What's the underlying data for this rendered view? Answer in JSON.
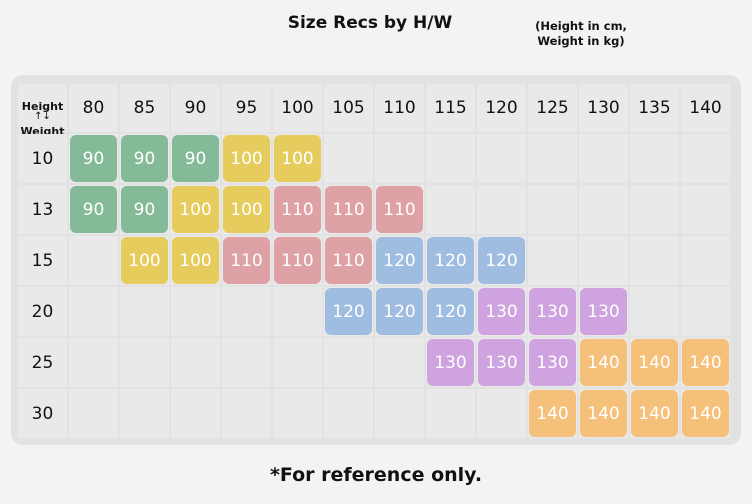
{
  "title": "Size Recs by H/W",
  "units_line1": "(Height in cm,",
  "units_line2": "Weight in kg)",
  "corner": {
    "height_label": "Height",
    "arrows": "↑↓",
    "weight_label": "Weight"
  },
  "footer": "*For reference only.",
  "heights": [
    "80",
    "85",
    "90",
    "95",
    "100",
    "105",
    "110",
    "115",
    "120",
    "125",
    "130",
    "135",
    "140"
  ],
  "weights": [
    "10",
    "13",
    "15",
    "20",
    "25",
    "30"
  ],
  "colors": {
    "90": "#85ba98",
    "100": "#e6cc5c",
    "110": "#dea2a6",
    "120": "#9fbde0",
    "130": "#cfa2e0",
    "140": "#f5c17a"
  },
  "table": [
    [
      "90",
      "90",
      "90",
      "100",
      "100",
      "",
      "",
      "",
      "",
      "",
      "",
      "",
      ""
    ],
    [
      "90",
      "90",
      "100",
      "100",
      "110",
      "110",
      "110",
      "",
      "",
      "",
      "",
      "",
      ""
    ],
    [
      "",
      "100",
      "100",
      "110",
      "110",
      "110",
      "120",
      "120",
      "120",
      "",
      "",
      "",
      ""
    ],
    [
      "",
      "",
      "",
      "",
      "",
      "120",
      "120",
      "120",
      "130",
      "130",
      "130",
      "",
      ""
    ],
    [
      "",
      "",
      "",
      "",
      "",
      "",
      "",
      "130",
      "130",
      "130",
      "140",
      "140",
      "140"
    ],
    [
      "",
      "",
      "",
      "",
      "",
      "",
      "",
      "",
      "",
      "140",
      "140",
      "140",
      "140"
    ]
  ]
}
